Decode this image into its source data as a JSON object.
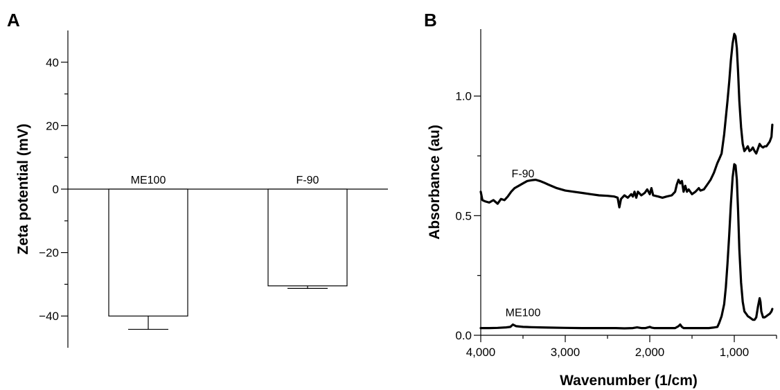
{
  "panels": {
    "a": "A",
    "b": "B"
  },
  "chart_data": [
    {
      "type": "bar",
      "panel": "A",
      "title": "",
      "xlabel": "",
      "ylabel": "Zeta potential (mV)",
      "ylim": [
        -50,
        50
      ],
      "yticks": [
        -40,
        -20,
        0,
        20,
        40
      ],
      "tick_labels": [
        "−40",
        "−20",
        "0",
        "20",
        "40"
      ],
      "categories": [
        "ME100",
        "F-90"
      ],
      "values": [
        -40,
        -30.5
      ],
      "errors": [
        4.2,
        0.8
      ],
      "bar_color": "#ffffff",
      "line_color": "#000000",
      "grid": false
    },
    {
      "type": "line",
      "panel": "B",
      "title": "",
      "xlabel": "Wavenumber (1/cm)",
      "ylabel": "Absorbance (au)",
      "xlim": [
        4000,
        500
      ],
      "x_reversed": true,
      "ylim": [
        0,
        1.28
      ],
      "xticks": [
        4000,
        3000,
        2000,
        1000
      ],
      "xtick_labels": [
        "4,000",
        "3,000",
        "2,000",
        "1,000"
      ],
      "yticks": [
        0,
        0.5,
        1.0
      ],
      "ytick_labels": [
        "0.0",
        "0.5",
        "1.0"
      ],
      "line_color": "#000000",
      "grid": false,
      "series": [
        {
          "name": "F-90",
          "label_at": [
            3500,
            0.66
          ],
          "x": [
            4000,
            3980,
            3950,
            3900,
            3850,
            3800,
            3760,
            3720,
            3680,
            3640,
            3600,
            3550,
            3500,
            3450,
            3400,
            3350,
            3300,
            3250,
            3200,
            3100,
            3000,
            2900,
            2800,
            2700,
            2600,
            2500,
            2420,
            2380,
            2360,
            2340,
            2300,
            2260,
            2220,
            2200,
            2180,
            2160,
            2140,
            2100,
            2060,
            2030,
            2000,
            1980,
            1960,
            1900,
            1850,
            1800,
            1740,
            1700,
            1680,
            1660,
            1640,
            1620,
            1600,
            1580,
            1560,
            1540,
            1500,
            1460,
            1420,
            1400,
            1360,
            1320,
            1280,
            1240,
            1200,
            1180,
            1150,
            1120,
            1100,
            1080,
            1060,
            1040,
            1020,
            1000,
            985,
            970,
            955,
            940,
            920,
            900,
            880,
            860,
            840,
            820,
            800,
            780,
            760,
            740,
            720,
            700,
            680,
            660,
            640,
            620,
            600,
            580,
            560,
            550
          ],
          "y": [
            0.6,
            0.565,
            0.56,
            0.555,
            0.565,
            0.55,
            0.57,
            0.565,
            0.58,
            0.6,
            0.615,
            0.625,
            0.635,
            0.645,
            0.648,
            0.65,
            0.645,
            0.638,
            0.63,
            0.615,
            0.605,
            0.6,
            0.595,
            0.59,
            0.585,
            0.583,
            0.58,
            0.575,
            0.535,
            0.57,
            0.585,
            0.575,
            0.59,
            0.58,
            0.6,
            0.575,
            0.6,
            0.585,
            0.595,
            0.61,
            0.59,
            0.615,
            0.585,
            0.58,
            0.575,
            0.58,
            0.585,
            0.6,
            0.63,
            0.65,
            0.635,
            0.645,
            0.6,
            0.625,
            0.6,
            0.61,
            0.59,
            0.6,
            0.615,
            0.605,
            0.61,
            0.63,
            0.65,
            0.68,
            0.72,
            0.735,
            0.76,
            0.84,
            0.91,
            0.98,
            1.06,
            1.15,
            1.22,
            1.26,
            1.25,
            1.2,
            1.1,
            0.98,
            0.87,
            0.8,
            0.77,
            0.78,
            0.79,
            0.77,
            0.775,
            0.785,
            0.77,
            0.76,
            0.78,
            0.8,
            0.79,
            0.785,
            0.79,
            0.79,
            0.8,
            0.81,
            0.83,
            0.88
          ]
        },
        {
          "name": "ME100",
          "label_at": [
            3500,
            0.08
          ],
          "x": [
            4000,
            3900,
            3800,
            3700,
            3650,
            3620,
            3580,
            3500,
            3400,
            3300,
            3200,
            3000,
            2800,
            2600,
            2400,
            2300,
            2200,
            2150,
            2100,
            2050,
            2000,
            1980,
            1950,
            1900,
            1800,
            1700,
            1660,
            1640,
            1620,
            1600,
            1500,
            1400,
            1300,
            1250,
            1200,
            1180,
            1150,
            1120,
            1100,
            1080,
            1060,
            1040,
            1020,
            1000,
            985,
            970,
            955,
            940,
            920,
            900,
            880,
            860,
            840,
            820,
            800,
            780,
            760,
            740,
            720,
            700,
            690,
            680,
            660,
            640,
            620,
            600,
            580,
            560,
            550
          ],
          "y": [
            0.03,
            0.03,
            0.031,
            0.033,
            0.035,
            0.045,
            0.038,
            0.035,
            0.034,
            0.033,
            0.032,
            0.031,
            0.03,
            0.03,
            0.03,
            0.029,
            0.03,
            0.033,
            0.03,
            0.03,
            0.035,
            0.032,
            0.03,
            0.03,
            0.03,
            0.03,
            0.038,
            0.045,
            0.035,
            0.03,
            0.03,
            0.03,
            0.03,
            0.032,
            0.035,
            0.05,
            0.08,
            0.13,
            0.2,
            0.3,
            0.42,
            0.55,
            0.66,
            0.715,
            0.71,
            0.65,
            0.52,
            0.36,
            0.22,
            0.14,
            0.1,
            0.09,
            0.08,
            0.075,
            0.07,
            0.065,
            0.065,
            0.075,
            0.12,
            0.155,
            0.14,
            0.1,
            0.075,
            0.075,
            0.08,
            0.085,
            0.09,
            0.1,
            0.11
          ]
        }
      ]
    }
  ]
}
